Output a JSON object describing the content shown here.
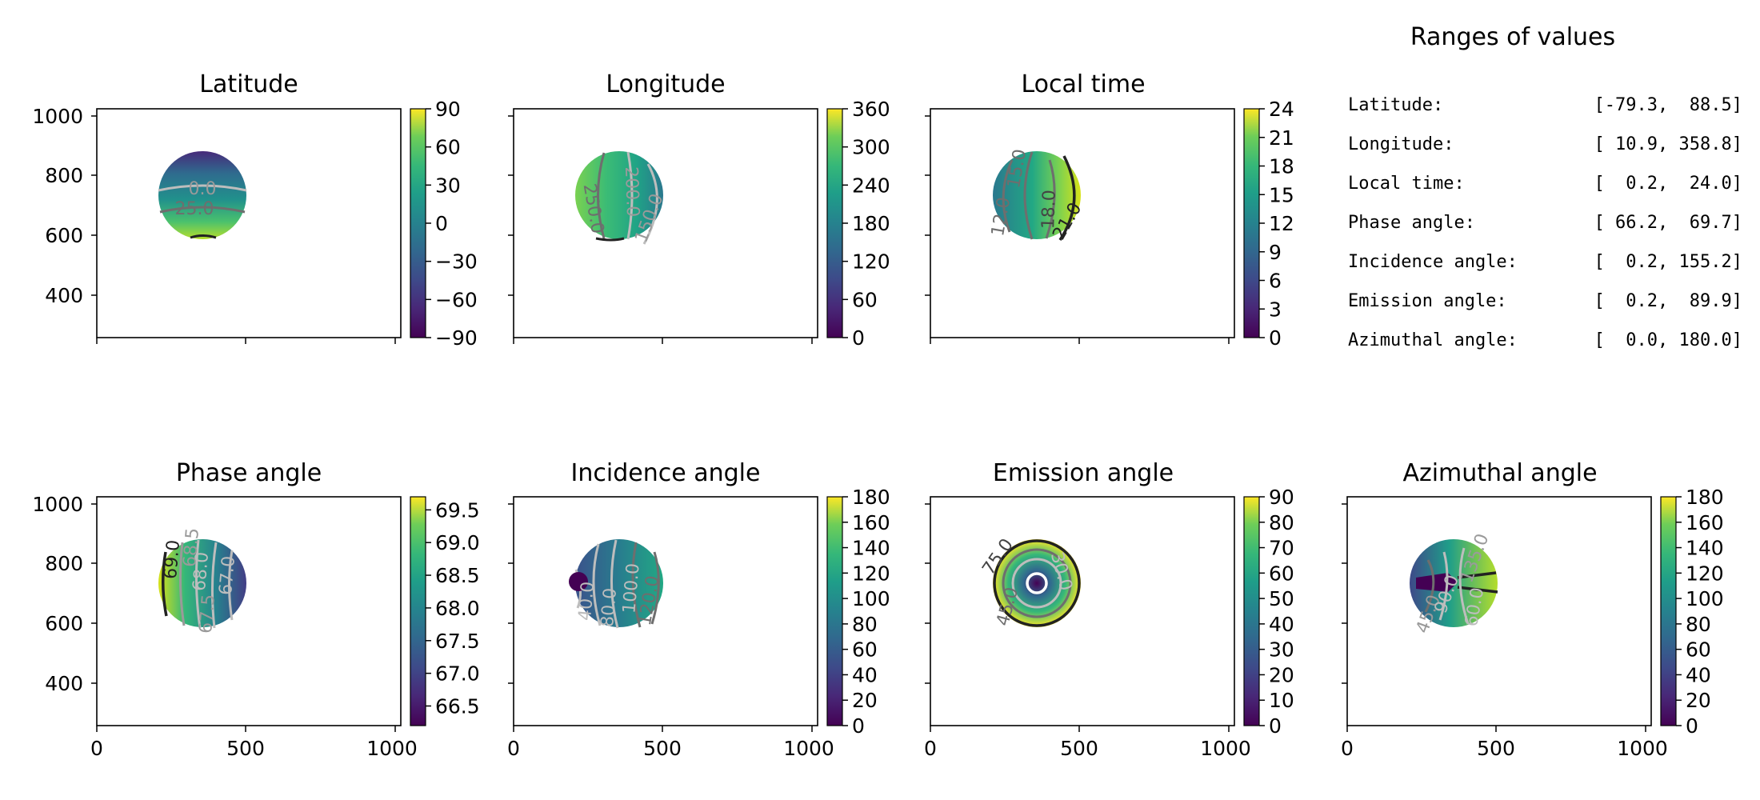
{
  "chart_data": [
    {
      "type": "heatmap",
      "title": "Latitude",
      "xlabel": "",
      "ylabel": "",
      "xlim": [
        0,
        1024
      ],
      "ylim": [
        256,
        1024
      ],
      "x_ticks": [],
      "y_ticks": [
        400,
        600,
        800,
        1000
      ],
      "disk": {
        "cx": 350,
        "cy": 735,
        "r": 150
      },
      "colorbar": {
        "colormap": "viridis",
        "min": -90,
        "max": 90,
        "ticks": [
          "90",
          "60",
          "30",
          "0",
          "−30",
          "−60",
          "−90"
        ]
      },
      "contour_labels": [
        "0.0",
        "25.0"
      ]
    },
    {
      "type": "heatmap",
      "title": "Longitude",
      "xlabel": "",
      "ylabel": "",
      "xlim": [
        0,
        1024
      ],
      "ylim": [
        256,
        1024
      ],
      "x_ticks": [],
      "y_ticks": [],
      "disk": {
        "cx": 350,
        "cy": 735,
        "r": 150
      },
      "colorbar": {
        "colormap": "viridis",
        "min": 0,
        "max": 360,
        "ticks": [
          "360",
          "300",
          "240",
          "180",
          "120",
          "60",
          "0"
        ]
      },
      "contour_labels": [
        "250.0",
        "200.0",
        "150.0"
      ]
    },
    {
      "type": "heatmap",
      "title": "Local time",
      "xlabel": "",
      "ylabel": "",
      "xlim": [
        0,
        1024
      ],
      "ylim": [
        256,
        1024
      ],
      "x_ticks": [],
      "y_ticks": [],
      "disk": {
        "cx": 350,
        "cy": 735,
        "r": 150
      },
      "colorbar": {
        "colormap": "viridis",
        "min": 0,
        "max": 24,
        "ticks": [
          "24",
          "21",
          "18",
          "15",
          "12",
          "9",
          "6",
          "3",
          "0"
        ]
      },
      "contour_labels": [
        "15.0",
        "12.0",
        "18.0",
        "21.0"
      ]
    },
    {
      "type": "heatmap",
      "title": "Phase angle",
      "xlabel": "",
      "ylabel": "",
      "xlim": [
        0,
        1024
      ],
      "ylim": [
        256,
        1024
      ],
      "x_ticks": [
        "0",
        "500",
        "1000"
      ],
      "y_ticks": [
        400,
        600,
        800,
        1000
      ],
      "disk": {
        "cx": 350,
        "cy": 735,
        "r": 150
      },
      "colorbar": {
        "colormap": "viridis",
        "min": 66.2,
        "max": 69.7,
        "ticks": [
          "69.5",
          "69.0",
          "68.5",
          "68.0",
          "67.5",
          "67.0",
          "66.5"
        ]
      },
      "contour_labels": [
        "69.0",
        "68.5",
        "68.0",
        "67.5",
        "67.0"
      ]
    },
    {
      "type": "heatmap",
      "title": "Incidence angle",
      "xlabel": "",
      "ylabel": "",
      "xlim": [
        0,
        1024
      ],
      "ylim": [
        256,
        1024
      ],
      "x_ticks": [
        "0",
        "500",
        "1000"
      ],
      "y_ticks": [],
      "disk": {
        "cx": 350,
        "cy": 735,
        "r": 150
      },
      "colorbar": {
        "colormap": "viridis",
        "min": 0,
        "max": 180,
        "ticks": [
          "180",
          "160",
          "140",
          "120",
          "100",
          "80",
          "60",
          "40",
          "20",
          "0"
        ]
      },
      "contour_labels": [
        "40.0",
        "80.0",
        "100.0",
        "120.0"
      ]
    },
    {
      "type": "heatmap",
      "title": "Emission angle",
      "xlabel": "",
      "ylabel": "",
      "xlim": [
        0,
        1024
      ],
      "ylim": [
        256,
        1024
      ],
      "x_ticks": [
        "0",
        "500",
        "1000"
      ],
      "y_ticks": [],
      "disk": {
        "cx": 350,
        "cy": 735,
        "r": 150
      },
      "colorbar": {
        "colormap": "viridis",
        "min": 0,
        "max": 90,
        "ticks": [
          "90",
          "80",
          "70",
          "60",
          "50",
          "40",
          "30",
          "20",
          "10",
          "0"
        ]
      },
      "contour_labels": [
        "75.0",
        "30.0",
        "45.0"
      ]
    },
    {
      "type": "heatmap",
      "title": "Azimuthal angle",
      "xlabel": "",
      "ylabel": "",
      "xlim": [
        0,
        1024
      ],
      "ylim": [
        256,
        1024
      ],
      "x_ticks": [
        "0",
        "500",
        "1000"
      ],
      "y_ticks": [],
      "disk": {
        "cx": 350,
        "cy": 735,
        "r": 150
      },
      "colorbar": {
        "colormap": "viridis",
        "min": 0,
        "max": 180,
        "ticks": [
          "180",
          "160",
          "140",
          "120",
          "100",
          "80",
          "60",
          "40",
          "20",
          "0"
        ]
      },
      "contour_labels": [
        "135.0",
        "45.0",
        "90.0",
        "60.0"
      ]
    }
  ],
  "ranges_panel": {
    "title": "Ranges of values",
    "rows": [
      {
        "label": "Latitude:",
        "range": "[-79.3,  88.5]"
      },
      {
        "label": "Longitude:",
        "range": "[ 10.9, 358.8]"
      },
      {
        "label": "Local time:",
        "range": "[  0.2,  24.0]"
      },
      {
        "label": "Phase angle:",
        "range": "[ 66.2,  69.7]"
      },
      {
        "label": "Incidence angle:",
        "range": "[  0.2, 155.2]"
      },
      {
        "label": "Emission angle:",
        "range": "[  0.2,  89.9]"
      },
      {
        "label": "Azimuthal angle:",
        "range": "[  0.0, 180.0]"
      }
    ]
  },
  "colors": {
    "axis": "#000000",
    "contour_dark": "#222222",
    "contour_mid": "#6e6e6e",
    "contour_light": "#bdbdbd"
  }
}
